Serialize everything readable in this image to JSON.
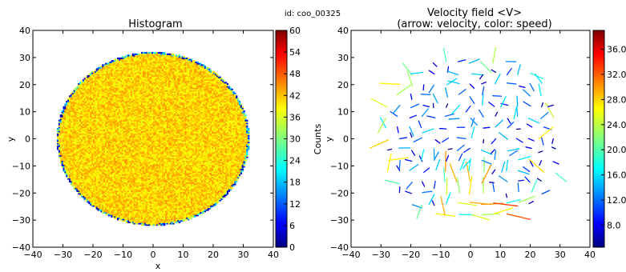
{
  "figure_id": "id: coo_00325",
  "chart_data": [
    {
      "type": "heatmap",
      "title": "Histogram",
      "xlabel": "x",
      "ylabel": "y",
      "xlim": [
        -40,
        40
      ],
      "ylim": [
        -40,
        40
      ],
      "xticks": [
        -40,
        -30,
        -20,
        -10,
        0,
        10,
        20,
        30,
        40
      ],
      "yticks": [
        -40,
        -30,
        -20,
        -10,
        0,
        10,
        20,
        30,
        40
      ],
      "xtick_labels": [
        "−40",
        "−30",
        "−20",
        "−10",
        "0",
        "10",
        "20",
        "30",
        "40"
      ],
      "ytick_labels": [
        "−40",
        "−30",
        "−20",
        "−10",
        "0",
        "10",
        "20",
        "30",
        "40"
      ],
      "region": {
        "shape": "disk",
        "center": [
          0,
          0
        ],
        "radius": 32
      },
      "typical_count": 40,
      "colorbar": {
        "label": "Counts",
        "range": [
          0,
          60
        ],
        "ticks": [
          0,
          6,
          12,
          18,
          24,
          30,
          36,
          42,
          48,
          54,
          60
        ],
        "tick_labels": [
          "0",
          "6",
          "12",
          "18",
          "24",
          "30",
          "36",
          "42",
          "48",
          "54",
          "60"
        ]
      },
      "grid": false
    },
    {
      "type": "quiver",
      "title": "Velocity field <V>",
      "subtitle": "(arrow: velocity, color: speed)",
      "xlabel": "x",
      "ylabel": "y",
      "xlim": [
        -40,
        40
      ],
      "ylim": [
        -40,
        40
      ],
      "xticks": [
        -40,
        -30,
        -20,
        -10,
        0,
        10,
        20,
        30,
        40
      ],
      "yticks": [
        -40,
        -30,
        -20,
        -10,
        0,
        10,
        20,
        30,
        40
      ],
      "xtick_labels": [
        "−40",
        "−30",
        "−20",
        "−10",
        "0",
        "10",
        "20",
        "30",
        "40"
      ],
      "ytick_labels": [
        "−40",
        "−30",
        "−20",
        "−10",
        "0",
        "10",
        "20",
        "30",
        "40"
      ],
      "region": {
        "shape": "disk",
        "center": [
          0,
          0
        ],
        "radius": 32
      },
      "grid_spacing": 4,
      "colorbar": {
        "range": [
          4.5,
          39
        ],
        "ticks": [
          8,
          12,
          16,
          20,
          24,
          28,
          32,
          36
        ],
        "tick_labels": [
          "8.0",
          "12.0",
          "16.0",
          "20.0",
          "24.0",
          "28.0",
          "32.0",
          "36.0"
        ]
      },
      "grid": false
    }
  ],
  "colors": {
    "jet": [
      "#00007f",
      "#0000ff",
      "#007fff",
      "#00ffff",
      "#7fff7f",
      "#ffff00",
      "#ff7f00",
      "#ff0000",
      "#7f0000"
    ]
  }
}
